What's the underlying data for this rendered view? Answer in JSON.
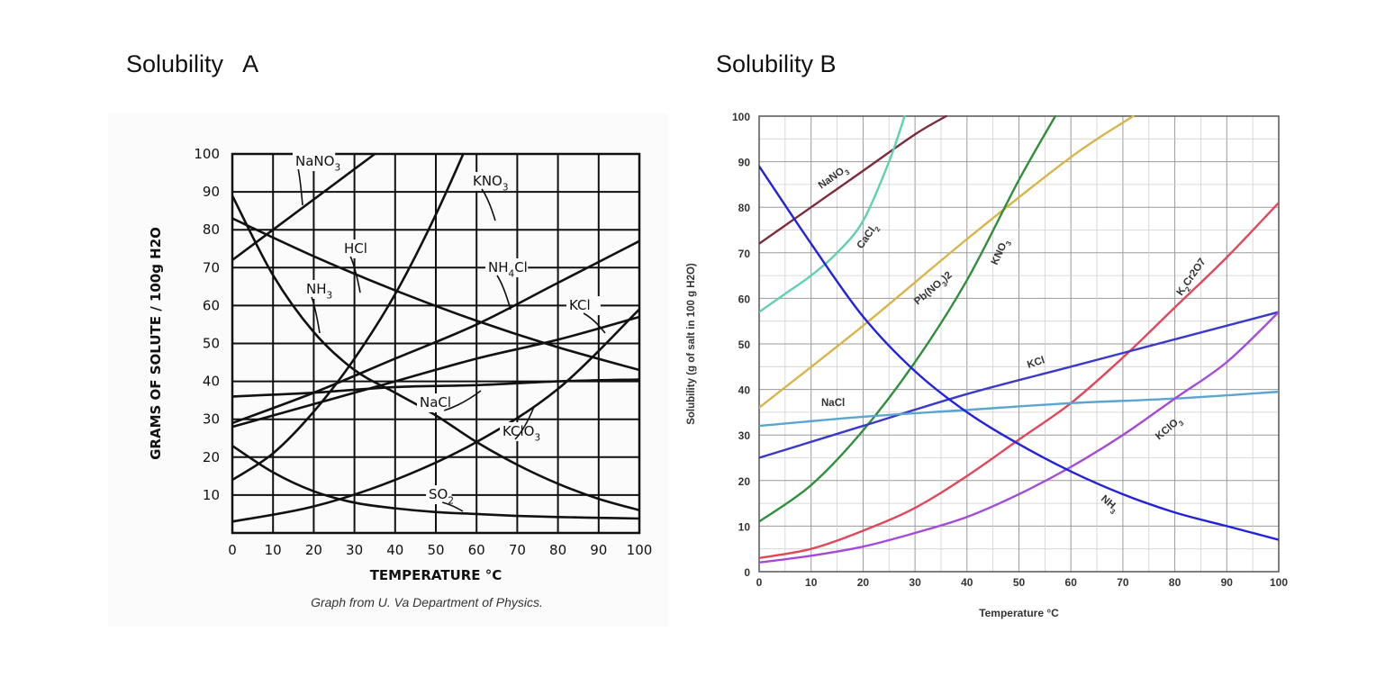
{
  "headings": {
    "left": "Solubility   A",
    "right": "Solubility B"
  },
  "chart_data": [
    {
      "type": "line",
      "title": "Solubility   A",
      "xlabel": "TEMPERATURE   °C",
      "ylabel": "GRAMS  OF  SOLUTE / 100g  H2O",
      "caption": "Graph from U. Va Department of Physics.",
      "xlim": [
        0,
        100
      ],
      "ylim": [
        0,
        100
      ],
      "x_ticks": [
        "0",
        "10",
        "20",
        "30",
        "40",
        "50",
        "60",
        "70",
        "80",
        "90",
        "100"
      ],
      "y_ticks": [
        "10",
        "20",
        "30",
        "40",
        "50",
        "60",
        "70",
        "80",
        "90",
        "100"
      ],
      "grid": true,
      "series": [
        {
          "name": "NaNO3",
          "label_main": "NaNO",
          "label_sub": "3",
          "color": "#111111",
          "x": [
            0,
            10,
            20,
            30,
            40
          ],
          "y": [
            72,
            80,
            88,
            96,
            104
          ]
        },
        {
          "name": "KNO3",
          "label_main": "KNO",
          "label_sub": "3",
          "color": "#111111",
          "x": [
            0,
            10,
            20,
            30,
            40,
            50,
            60
          ],
          "y": [
            14,
            21,
            32,
            46,
            63,
            84,
            108
          ]
        },
        {
          "name": "HCl",
          "label_main": "HCl",
          "label_sub": "",
          "color": "#111111",
          "x": [
            0,
            20,
            40,
            60,
            80,
            100
          ],
          "y": [
            83,
            73,
            64,
            56,
            49,
            43
          ]
        },
        {
          "name": "NH4Cl",
          "label_main": "NH",
          "label_sub": "4",
          "label_tail": "Cl",
          "color": "#111111",
          "x": [
            0,
            20,
            40,
            60,
            80,
            100
          ],
          "y": [
            29,
            37,
            46,
            55,
            66,
            77
          ]
        },
        {
          "name": "NH3",
          "label_main": "NH",
          "label_sub": "3",
          "color": "#111111",
          "x": [
            0,
            10,
            20,
            30,
            40,
            50,
            60,
            70,
            80,
            90,
            100
          ],
          "y": [
            89,
            68,
            53,
            43,
            37,
            31,
            24,
            18,
            13,
            9,
            6
          ]
        },
        {
          "name": "KCl",
          "label_main": "KCl",
          "label_sub": "",
          "color": "#111111",
          "x": [
            0,
            20,
            40,
            60,
            80,
            100
          ],
          "y": [
            28,
            34,
            40,
            46,
            51,
            57
          ]
        },
        {
          "name": "NaCl",
          "label_main": "NaCl",
          "label_sub": "",
          "color": "#111111",
          "x": [
            0,
            20,
            40,
            60,
            80,
            100
          ],
          "y": [
            36,
            37,
            38.5,
            39,
            40,
            40.5
          ]
        },
        {
          "name": "KClO3",
          "label_main": "KClO",
          "label_sub": "3",
          "color": "#111111",
          "x": [
            0,
            20,
            40,
            60,
            80,
            100
          ],
          "y": [
            3,
            7,
            14,
            24,
            38,
            59
          ]
        },
        {
          "name": "SO2",
          "label_main": "SO",
          "label_sub": "2",
          "color": "#111111",
          "x": [
            0,
            10,
            20,
            30,
            40,
            50,
            60,
            70,
            80,
            90,
            100
          ],
          "y": [
            23,
            16,
            11,
            8,
            6.5,
            5.5,
            5,
            4.5,
            4.2,
            4,
            3.8
          ]
        }
      ]
    },
    {
      "type": "line",
      "title": "Solubility B",
      "xlabel": "Temperature °C",
      "ylabel": "Solubility (g of salt in 100 g H2O)",
      "xlim": [
        0,
        100
      ],
      "ylim": [
        0,
        100
      ],
      "x_ticks": [
        "0",
        "10",
        "20",
        "30",
        "40",
        "50",
        "60",
        "70",
        "80",
        "90",
        "100"
      ],
      "y_ticks": [
        "0",
        "10",
        "20",
        "30",
        "40",
        "50",
        "60",
        "70",
        "80",
        "90",
        "100"
      ],
      "grid": true,
      "series": [
        {
          "name": "NaNO3",
          "label_main": "NaNO",
          "label_sub": "3",
          "color": "#7d2a3a",
          "x": [
            0,
            10,
            20,
            30,
            36
          ],
          "y": [
            72,
            80,
            88,
            96,
            100
          ]
        },
        {
          "name": "CaCl2",
          "label_main": "CaCl",
          "label_sub": "2",
          "color": "#5fd0b0",
          "x": [
            0,
            5,
            10,
            15,
            20,
            25,
            28
          ],
          "y": [
            57,
            61,
            65,
            70,
            77,
            90,
            100
          ]
        },
        {
          "name": "Pb(NO3)2",
          "label_main": "Pb(NO",
          "label_sub": "3",
          "label_tail": ")2",
          "color": "#d9b44a",
          "x": [
            0,
            20,
            40,
            60,
            72
          ],
          "y": [
            36,
            54,
            73,
            91,
            100
          ]
        },
        {
          "name": "KNO3",
          "label_main": "KNO",
          "label_sub": "3",
          "color": "#2f8f3a",
          "x": [
            0,
            10,
            20,
            30,
            40,
            50,
            57
          ],
          "y": [
            11,
            19,
            31,
            46,
            64,
            86,
            100
          ]
        },
        {
          "name": "K2Cr2O7",
          "label_main": "K",
          "label_sub": "2",
          "label_tail": "Cr2O7",
          "color": "#e0485a",
          "x": [
            0,
            10,
            20,
            30,
            40,
            50,
            60,
            70,
            80,
            90,
            100
          ],
          "y": [
            3,
            5,
            9,
            14,
            21,
            29,
            37,
            47,
            58,
            69,
            81
          ]
        },
        {
          "name": "KCl",
          "label_main": "KCl",
          "label_sub": "",
          "color": "#3a3ac8",
          "x": [
            0,
            20,
            40,
            60,
            80,
            100
          ],
          "y": [
            25,
            32,
            39,
            45,
            51,
            57
          ]
        },
        {
          "name": "NaCl",
          "label_main": "NaCl",
          "label_sub": "",
          "color": "#5aa6d0",
          "x": [
            0,
            20,
            40,
            60,
            80,
            100
          ],
          "y": [
            32,
            34,
            35.5,
            37,
            38,
            39.5
          ]
        },
        {
          "name": "KClO3",
          "label_main": "KClO",
          "label_sub": "3",
          "color": "#a44ad8",
          "x": [
            0,
            10,
            20,
            30,
            40,
            50,
            60,
            70,
            80,
            90,
            100
          ],
          "y": [
            2,
            3.5,
            5.5,
            8.5,
            12,
            17,
            23,
            30,
            38,
            46,
            57
          ]
        },
        {
          "name": "NH3",
          "label_main": "NH",
          "label_sub": "3",
          "color": "#2222dd",
          "x": [
            0,
            10,
            20,
            30,
            40,
            50,
            60,
            70,
            80,
            90,
            100
          ],
          "y": [
            89,
            72,
            56,
            44,
            35,
            28,
            22,
            17,
            13,
            10,
            7
          ]
        }
      ]
    }
  ]
}
